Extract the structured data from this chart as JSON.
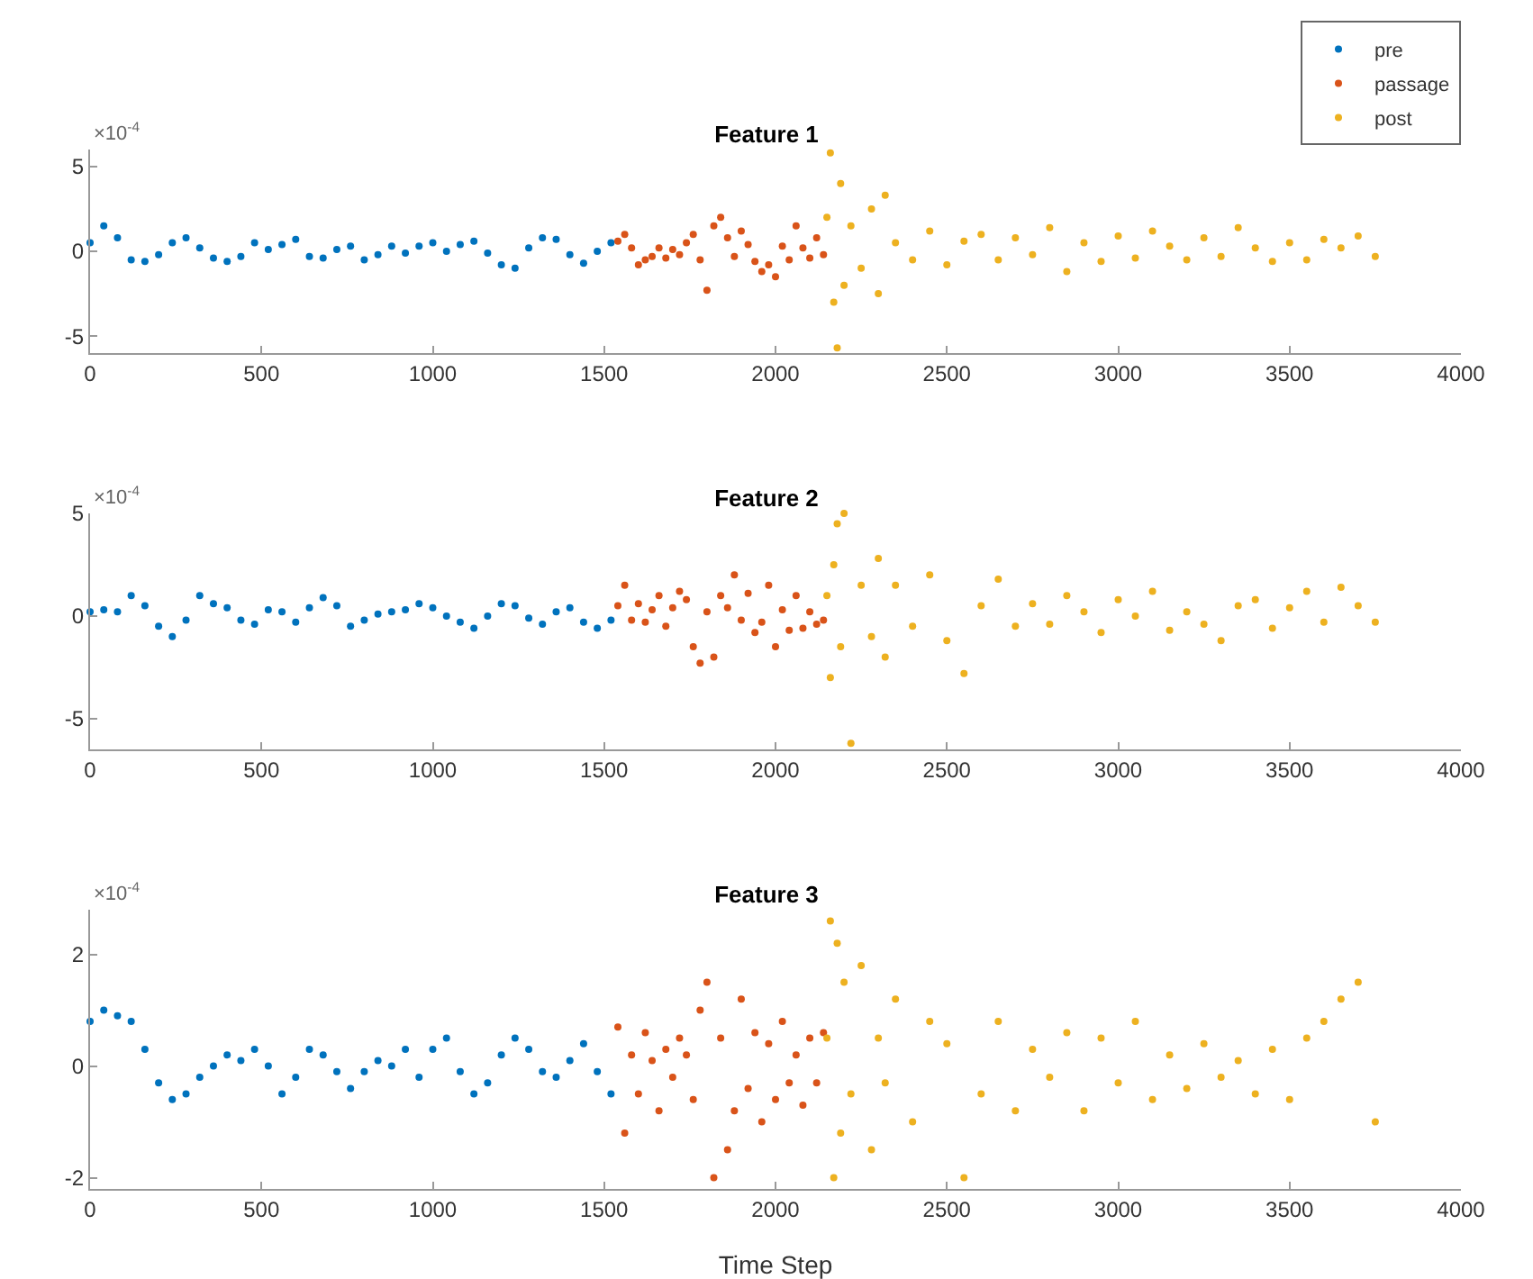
{
  "chart_data": [
    {
      "type": "scatter",
      "title": "Feature 1",
      "annotations": [
        "×10$^{-4}$"
      ],
      "xlim": [
        0,
        4000
      ],
      "xticks": [
        0,
        500,
        1000,
        1500,
        2000,
        2500,
        3000,
        3500,
        4000
      ],
      "ylim": [
        -6,
        6
      ],
      "yticks": [
        -5,
        0,
        5
      ],
      "grid": false,
      "legend": "top right",
      "marker": "circle",
      "series": [
        {
          "name": "pre",
          "color": "#0072bd",
          "x": [
            0,
            40,
            80,
            120,
            160,
            200,
            240,
            280,
            320,
            360,
            400,
            440,
            480,
            520,
            560,
            600,
            640,
            680,
            720,
            760,
            800,
            840,
            880,
            920,
            960,
            1000,
            1040,
            1080,
            1120,
            1160,
            1200,
            1240,
            1280,
            1320,
            1360,
            1400,
            1440,
            1480,
            1520
          ],
          "values": [
            0.5,
            1.5,
            0.8,
            -0.5,
            -0.6,
            -0.2,
            0.5,
            0.8,
            0.2,
            -0.4,
            -0.6,
            -0.3,
            0.5,
            0.1,
            0.4,
            0.7,
            -0.3,
            -0.4,
            0.1,
            0.3,
            -0.5,
            -0.2,
            0.3,
            -0.1,
            0.3,
            0.5,
            0,
            0.4,
            0.6,
            -0.1,
            -0.8,
            -1.0,
            0.2,
            0.8,
            0.7,
            -0.2,
            -0.7,
            0,
            0.5
          ]
        },
        {
          "name": "passage",
          "color": "#d95319",
          "x": [
            1540,
            1560,
            1580,
            1600,
            1620,
            1640,
            1660,
            1680,
            1700,
            1720,
            1740,
            1760,
            1780,
            1800,
            1820,
            1840,
            1860,
            1880,
            1900,
            1920,
            1940,
            1960,
            1980,
            2000,
            2020,
            2040,
            2060,
            2080,
            2100,
            2120,
            2140
          ],
          "values": [
            0.6,
            1.0,
            0.2,
            -0.8,
            -0.5,
            -0.3,
            0.2,
            -0.4,
            0.1,
            -0.2,
            0.5,
            1.0,
            -0.5,
            -2.3,
            1.5,
            2.0,
            0.8,
            -0.3,
            1.2,
            0.4,
            -0.6,
            -1.2,
            -0.8,
            -1.5,
            0.3,
            -0.5,
            1.5,
            0.2,
            -0.4,
            0.8,
            -0.2
          ]
        },
        {
          "name": "post",
          "color": "#edb120",
          "x": [
            2150,
            2160,
            2170,
            2180,
            2190,
            2200,
            2220,
            2250,
            2280,
            2300,
            2320,
            2350,
            2400,
            2450,
            2500,
            2550,
            2600,
            2650,
            2700,
            2750,
            2800,
            2850,
            2900,
            2950,
            3000,
            3050,
            3100,
            3150,
            3200,
            3250,
            3300,
            3350,
            3400,
            3450,
            3500,
            3550,
            3600,
            3650,
            3700,
            3750
          ],
          "values": [
            2.0,
            5.8,
            -3.0,
            -5.7,
            4.0,
            -2.0,
            1.5,
            -1.0,
            2.5,
            -2.5,
            3.3,
            0.5,
            -0.5,
            1.2,
            -0.8,
            0.6,
            1.0,
            -0.5,
            0.8,
            -0.2,
            1.4,
            -1.2,
            0.5,
            -0.6,
            0.9,
            -0.4,
            1.2,
            0.3,
            -0.5,
            0.8,
            -0.3,
            1.4,
            0.2,
            -0.6,
            0.5,
            -0.5,
            0.7,
            0.2,
            0.9,
            -0.3
          ]
        }
      ]
    },
    {
      "type": "scatter",
      "title": "Feature 2",
      "annotations": [
        "×10$^{-4}$"
      ],
      "xlim": [
        0,
        4000
      ],
      "xticks": [
        0,
        500,
        1000,
        1500,
        2000,
        2500,
        3000,
        3500,
        4000
      ],
      "ylim": [
        -6.5,
        5
      ],
      "yticks": [
        -5,
        0,
        5
      ],
      "grid": false,
      "marker": "circle",
      "series": [
        {
          "color": "#0072bd",
          "x": [
            0,
            40,
            80,
            120,
            160,
            200,
            240,
            280,
            320,
            360,
            400,
            440,
            480,
            520,
            560,
            600,
            640,
            680,
            720,
            760,
            800,
            840,
            880,
            920,
            960,
            1000,
            1040,
            1080,
            1120,
            1160,
            1200,
            1240,
            1280,
            1320,
            1360,
            1400,
            1440,
            1480,
            1520
          ],
          "values": [
            0.2,
            0.3,
            0.2,
            1.0,
            0.5,
            -0.5,
            -1.0,
            -0.2,
            1.0,
            0.6,
            0.4,
            -0.2,
            -0.4,
            0.3,
            0.2,
            -0.3,
            0.4,
            0.9,
            0.5,
            -0.5,
            -0.2,
            0.1,
            0.2,
            0.3,
            0.6,
            0.4,
            0,
            -0.3,
            -0.6,
            0,
            0.6,
            0.5,
            -0.1,
            -0.4,
            0.2,
            0.4,
            -0.3,
            -0.6,
            -0.2
          ]
        },
        {
          "color": "#d95319",
          "x": [
            1540,
            1560,
            1580,
            1600,
            1620,
            1640,
            1660,
            1680,
            1700,
            1720,
            1740,
            1760,
            1780,
            1800,
            1820,
            1840,
            1860,
            1880,
            1900,
            1920,
            1940,
            1960,
            1980,
            2000,
            2020,
            2040,
            2060,
            2080,
            2100,
            2120,
            2140
          ],
          "values": [
            0.5,
            1.5,
            -0.2,
            0.6,
            -0.3,
            0.3,
            1.0,
            -0.5,
            0.4,
            1.2,
            0.8,
            -1.5,
            -2.3,
            0.2,
            -2.0,
            1.0,
            0.4,
            2.0,
            -0.2,
            1.1,
            -0.8,
            -0.3,
            1.5,
            -1.5,
            0.3,
            -0.7,
            1.0,
            -0.6,
            0.2,
            -0.4,
            -0.2
          ]
        },
        {
          "color": "#edb120",
          "x": [
            2150,
            2160,
            2170,
            2180,
            2190,
            2200,
            2220,
            2250,
            2280,
            2300,
            2320,
            2350,
            2400,
            2450,
            2500,
            2550,
            2600,
            2650,
            2700,
            2750,
            2800,
            2850,
            2900,
            2950,
            3000,
            3050,
            3100,
            3150,
            3200,
            3250,
            3300,
            3350,
            3400,
            3450,
            3500,
            3550,
            3600,
            3650,
            3700,
            3750
          ],
          "values": [
            1.0,
            -3.0,
            2.5,
            4.5,
            -1.5,
            5.0,
            -6.2,
            1.5,
            -1.0,
            2.8,
            -2.0,
            1.5,
            -0.5,
            2.0,
            -1.2,
            -2.8,
            0.5,
            1.8,
            -0.5,
            0.6,
            -0.4,
            1.0,
            0.2,
            -0.8,
            0.8,
            0.0,
            1.2,
            -0.7,
            0.2,
            -0.4,
            -1.2,
            0.5,
            0.8,
            -0.6,
            0.4,
            1.2,
            -0.3,
            1.4,
            0.5,
            -0.3
          ]
        }
      ]
    },
    {
      "type": "scatter",
      "title": "Feature 3",
      "xlabel": "Time Step",
      "annotations": [
        "×10$^{-4}$"
      ],
      "xlim": [
        0,
        4000
      ],
      "xticks": [
        0,
        500,
        1000,
        1500,
        2000,
        2500,
        3000,
        3500,
        4000
      ],
      "ylim": [
        -2.2,
        2.8
      ],
      "yticks": [
        -2,
        0,
        2
      ],
      "grid": false,
      "marker": "circle",
      "series": [
        {
          "color": "#0072bd",
          "x": [
            0,
            40,
            80,
            120,
            160,
            200,
            240,
            280,
            320,
            360,
            400,
            440,
            480,
            520,
            560,
            600,
            640,
            680,
            720,
            760,
            800,
            840,
            880,
            920,
            960,
            1000,
            1040,
            1080,
            1120,
            1160,
            1200,
            1240,
            1280,
            1320,
            1360,
            1400,
            1440,
            1480,
            1520
          ],
          "values": [
            0.8,
            1.0,
            0.9,
            0.8,
            0.3,
            -0.3,
            -0.6,
            -0.5,
            -0.2,
            0,
            0.2,
            0.1,
            0.3,
            0,
            -0.5,
            -0.2,
            0.3,
            0.2,
            -0.1,
            -0.4,
            -0.1,
            0.1,
            0,
            0.3,
            -0.2,
            0.3,
            0.5,
            -0.1,
            -0.5,
            -0.3,
            0.2,
            0.5,
            0.3,
            -0.1,
            -0.2,
            0.1,
            0.4,
            -0.1,
            -0.5
          ]
        },
        {
          "color": "#d95319",
          "x": [
            1540,
            1560,
            1580,
            1600,
            1620,
            1640,
            1660,
            1680,
            1700,
            1720,
            1740,
            1760,
            1780,
            1800,
            1820,
            1840,
            1860,
            1880,
            1900,
            1920,
            1940,
            1960,
            1980,
            2000,
            2020,
            2040,
            2060,
            2080,
            2100,
            2120,
            2140
          ],
          "values": [
            0.7,
            -1.2,
            0.2,
            -0.5,
            0.6,
            0.1,
            -0.8,
            0.3,
            -0.2,
            0.5,
            0.2,
            -0.6,
            1.0,
            1.5,
            -2.0,
            0.5,
            -1.5,
            -0.8,
            1.2,
            -0.4,
            0.6,
            -1.0,
            0.4,
            -0.6,
            0.8,
            -0.3,
            0.2,
            -0.7,
            0.5,
            -0.3,
            0.6
          ]
        },
        {
          "color": "#edb120",
          "x": [
            2150,
            2160,
            2170,
            2180,
            2190,
            2200,
            2220,
            2250,
            2280,
            2300,
            2320,
            2350,
            2400,
            2450,
            2500,
            2550,
            2600,
            2650,
            2700,
            2750,
            2800,
            2850,
            2900,
            2950,
            3000,
            3050,
            3100,
            3150,
            3200,
            3250,
            3300,
            3350,
            3400,
            3450,
            3500,
            3550,
            3600,
            3650,
            3700,
            3750
          ],
          "values": [
            0.5,
            2.6,
            -2.0,
            2.2,
            -1.2,
            1.5,
            -0.5,
            1.8,
            -1.5,
            0.5,
            -0.3,
            1.2,
            -1.0,
            0.8,
            0.4,
            -2.0,
            -0.5,
            0.8,
            -0.8,
            0.3,
            -0.2,
            0.6,
            -0.8,
            0.5,
            -0.3,
            0.8,
            -0.6,
            0.2,
            -0.4,
            0.4,
            -0.2,
            0.1,
            -0.5,
            0.3,
            -0.6,
            0.5,
            0.8,
            1.2,
            1.5,
            -1.0
          ]
        }
      ]
    }
  ]
}
